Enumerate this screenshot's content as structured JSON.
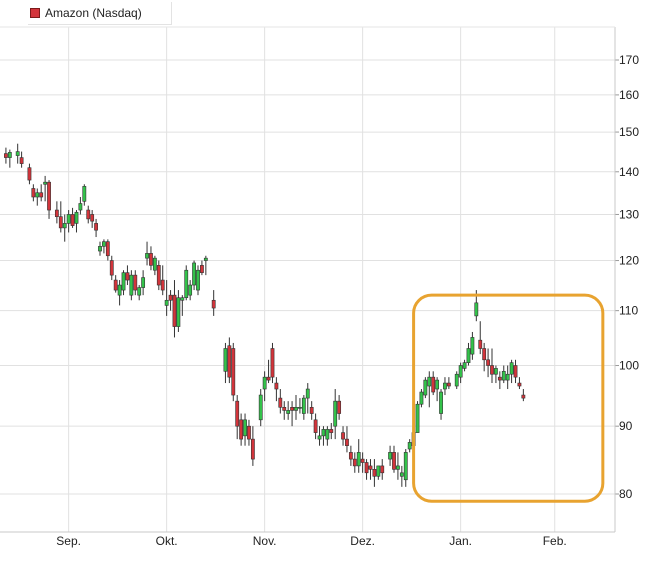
{
  "legend": {
    "label": "Amazon (Nasdaq)",
    "color": "#d2343b"
  },
  "colors": {
    "up": "#33c24a",
    "down": "#d2343b",
    "grid": "#e1e1e1",
    "highlight": "#e8a330"
  },
  "chart_data": {
    "type": "candlestick",
    "title": "",
    "series_name": "Amazon (Nasdaq)",
    "x_tick_labels": [
      "Sep.",
      "Okt.",
      "Nov.",
      "Dez.",
      "Jan.",
      "Feb."
    ],
    "y_tick_labels": [
      "80",
      "90",
      "100",
      "110",
      "120",
      "130",
      "140",
      "150",
      "160",
      "170"
    ],
    "y_axis": {
      "position": "right",
      "scale": "log",
      "range": [
        77,
        177
      ]
    },
    "grid": true,
    "annotation": {
      "type": "rounded-rectangle",
      "color": "#e8a330",
      "x_range_days": [
        105,
        152
      ],
      "y_range": [
        79,
        113
      ]
    },
    "candles": [
      [
        1,
        144.5,
        146,
        142,
        143.5
      ],
      [
        2,
        143.5,
        145.5,
        141,
        144.8
      ],
      [
        4,
        144,
        147,
        142,
        145
      ],
      [
        5,
        143.5,
        145,
        141,
        142
      ],
      [
        7,
        141,
        142,
        137,
        138
      ],
      [
        8,
        136,
        137,
        133,
        134
      ],
      [
        9,
        134,
        136,
        132,
        135
      ],
      [
        10,
        135,
        137,
        133,
        134
      ],
      [
        11,
        137,
        139,
        133,
        137.5
      ],
      [
        12,
        137.5,
        138,
        129,
        131
      ],
      [
        14,
        131,
        133,
        128,
        129.5
      ],
      [
        15,
        129.5,
        133,
        126,
        127
      ],
      [
        16,
        127,
        130,
        124,
        128
      ],
      [
        17,
        128,
        131,
        126,
        130
      ],
      [
        18,
        130,
        131.5,
        127,
        127.5
      ],
      [
        19,
        128,
        131,
        126,
        130.5
      ],
      [
        20,
        131,
        134,
        130,
        132.5
      ],
      [
        21,
        133,
        137,
        132,
        136.5
      ],
      [
        22,
        131,
        132,
        128,
        129
      ],
      [
        23,
        130,
        131,
        127,
        128.5
      ],
      [
        24,
        128,
        129,
        125,
        126.5
      ],
      [
        25,
        122,
        124,
        121,
        123
      ],
      [
        26,
        123,
        124.5,
        121.5,
        124
      ],
      [
        27,
        124,
        124.5,
        120,
        121
      ],
      [
        28,
        120,
        121,
        116,
        117
      ],
      [
        29,
        116,
        117,
        113.5,
        114
      ],
      [
        30,
        113,
        116,
        111,
        115
      ],
      [
        31,
        114,
        118,
        113,
        117.5
      ],
      [
        32,
        117.5,
        119,
        115,
        116
      ],
      [
        33,
        113,
        118,
        112,
        117
      ],
      [
        34,
        117,
        118,
        113,
        114
      ],
      [
        35,
        113,
        115,
        112,
        114.5
      ],
      [
        36,
        114.5,
        118,
        113,
        116.5
      ],
      [
        37,
        120.5,
        124,
        119,
        121.5
      ],
      [
        38,
        121.5,
        123,
        118,
        119
      ],
      [
        39,
        118,
        121,
        117,
        120.5
      ],
      [
        40,
        119,
        120,
        114,
        115
      ],
      [
        41,
        116,
        119,
        113,
        114
      ],
      [
        42,
        111,
        116,
        109,
        112
      ],
      [
        43,
        113,
        114,
        110,
        112
      ],
      [
        44,
        113,
        116,
        105,
        107
      ],
      [
        45,
        107,
        114,
        106,
        112.5
      ],
      [
        46,
        112,
        113,
        109,
        112.5
      ],
      [
        47,
        112.5,
        119,
        112,
        118
      ],
      [
        48,
        113,
        116,
        112,
        115
      ],
      [
        49,
        115,
        120,
        114,
        119.5
      ],
      [
        50,
        114,
        119,
        113,
        118
      ],
      [
        51,
        119,
        120,
        117,
        117.5
      ],
      [
        52,
        120,
        121,
        117,
        120.5
      ],
      [
        54,
        112,
        114,
        109,
        110.5
      ],
      [
        57,
        99,
        104,
        97,
        103
      ],
      [
        58,
        103.5,
        105,
        97,
        98
      ],
      [
        59,
        103,
        104,
        94,
        95
      ],
      [
        60,
        94,
        95,
        88,
        90
      ],
      [
        61,
        91,
        92,
        87,
        88
      ],
      [
        62,
        88.5,
        92,
        87,
        91
      ],
      [
        63,
        90,
        91,
        87,
        88
      ],
      [
        64,
        88,
        90,
        84,
        85
      ],
      [
        66,
        91,
        96,
        90,
        95
      ],
      [
        67,
        96,
        99,
        94,
        98
      ],
      [
        68,
        98,
        101,
        97,
        97.5
      ],
      [
        69,
        103,
        104,
        97,
        98
      ],
      [
        70,
        97,
        98,
        94,
        96
      ],
      [
        71,
        94.5,
        96,
        92,
        93
      ],
      [
        72,
        93,
        94,
        91,
        92.5
      ],
      [
        73,
        92,
        94,
        91,
        92.5
      ],
      [
        74,
        93,
        94,
        90,
        92.5
      ],
      [
        75,
        92.5,
        95,
        91,
        93
      ],
      [
        76,
        93,
        94.5,
        92,
        93
      ],
      [
        77,
        92,
        95,
        91,
        94.5
      ],
      [
        78,
        94.5,
        97,
        92,
        96
      ],
      [
        79,
        93,
        94,
        91,
        92
      ],
      [
        80,
        91,
        92,
        88,
        89
      ],
      [
        81,
        88,
        90,
        87,
        88.5
      ],
      [
        82,
        88.5,
        90,
        87,
        89.5
      ],
      [
        83,
        88,
        90,
        87,
        89.5
      ],
      [
        84,
        89.5,
        90.5,
        88,
        89
      ],
      [
        85,
        90,
        96,
        88,
        94
      ],
      [
        86,
        94,
        95,
        91,
        92
      ],
      [
        87,
        89,
        90,
        87,
        88
      ],
      [
        88,
        88,
        90,
        86,
        87
      ],
      [
        89,
        86,
        87,
        84,
        85
      ],
      [
        90,
        85,
        86,
        83,
        84
      ],
      [
        91,
        84,
        88,
        83,
        86
      ],
      [
        92,
        85,
        86,
        83,
        84.5
      ],
      [
        93,
        84.5,
        85,
        82,
        83
      ],
      [
        94,
        84,
        85,
        82,
        83.5
      ],
      [
        95,
        83.5,
        85,
        81,
        82.5
      ],
      [
        96,
        82.5,
        84,
        82,
        84
      ],
      [
        97,
        84,
        85,
        82,
        83
      ],
      [
        99,
        85,
        87,
        84,
        86
      ],
      [
        100,
        86,
        87,
        83,
        83.5
      ],
      [
        101,
        83.5,
        86,
        82,
        84
      ],
      [
        102,
        82.5,
        84,
        81,
        83
      ],
      [
        103,
        82,
        86.5,
        81,
        86
      ],
      [
        104,
        86.5,
        88,
        86,
        87.5
      ],
      [
        105,
        87,
        89,
        86.5,
        89
      ],
      [
        106,
        89,
        94,
        89,
        93.5
      ],
      [
        107,
        93.5,
        96,
        93,
        95.5
      ],
      [
        108,
        95,
        98,
        94.5,
        97.5
      ],
      [
        109,
        96.5,
        99,
        93,
        98
      ],
      [
        110,
        98,
        99,
        95,
        95.5
      ],
      [
        111,
        96,
        98,
        94,
        97.5
      ],
      [
        112,
        92,
        96,
        91,
        95.5
      ],
      [
        113,
        96,
        98,
        95,
        97
      ],
      [
        114,
        97,
        98,
        96,
        96.5
      ],
      [
        116,
        96.5,
        99,
        96,
        98.5
      ],
      [
        117,
        98,
        100.5,
        97,
        100
      ],
      [
        118,
        99.5,
        101,
        99,
        100.5
      ],
      [
        119,
        100.5,
        104,
        100,
        103
      ],
      [
        120,
        102,
        106,
        101,
        105
      ],
      [
        121,
        109,
        114,
        108,
        111.5
      ],
      [
        122,
        104.5,
        108,
        102,
        103
      ],
      [
        123,
        103,
        104,
        99,
        101
      ],
      [
        124,
        101,
        103,
        98,
        100
      ],
      [
        125,
        100,
        103,
        97,
        98.5
      ],
      [
        126,
        98.5,
        100,
        97,
        99.5
      ],
      [
        127,
        98,
        99,
        96,
        97.5
      ],
      [
        128,
        97.5,
        100,
        97,
        99
      ],
      [
        129,
        97.5,
        100,
        96,
        98.5
      ],
      [
        130,
        98.5,
        101,
        97,
        100.5
      ],
      [
        131,
        100,
        101,
        97,
        98
      ],
      [
        132,
        97,
        98,
        96,
        96.5
      ],
      [
        133,
        95,
        96,
        94,
        94.5
      ]
    ]
  }
}
